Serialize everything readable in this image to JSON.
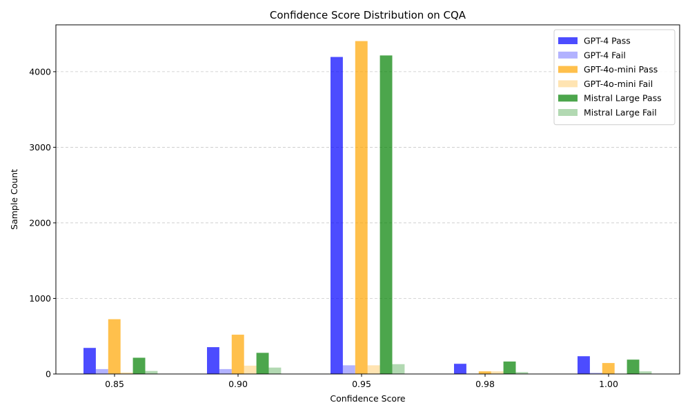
{
  "chart_data": {
    "type": "bar",
    "title": "Confidence Score Distribution on CQA",
    "xlabel": "Confidence Score",
    "ylabel": "Sample Count",
    "categories": [
      "0.85",
      "0.90",
      "0.95",
      "0.98",
      "1.00"
    ],
    "ylim": [
      0,
      4620
    ],
    "yticks": [
      0,
      1000,
      2000,
      3000,
      4000
    ],
    "grid": "y-dashed",
    "legend_position": "top-right",
    "series": [
      {
        "name": "GPT-4 Pass",
        "color": "#0000ff",
        "opacity": 0.7,
        "values": [
          345,
          355,
          4195,
          135,
          235
        ]
      },
      {
        "name": "GPT-4 Fail",
        "color": "#0000ff",
        "opacity": 0.3,
        "values": [
          65,
          65,
          115,
          0,
          15
        ]
      },
      {
        "name": "GPT-4o-mini Pass",
        "color": "#ffa500",
        "opacity": 0.7,
        "values": [
          725,
          520,
          4405,
          35,
          145
        ]
      },
      {
        "name": "GPT-4o-mini Fail",
        "color": "#ffa500",
        "opacity": 0.3,
        "values": [
          20,
          110,
          115,
          35,
          0
        ]
      },
      {
        "name": "Mistral Large Pass",
        "color": "#008000",
        "opacity": 0.7,
        "values": [
          215,
          280,
          4215,
          165,
          190
        ]
      },
      {
        "name": "Mistral Large Fail",
        "color": "#008000",
        "opacity": 0.3,
        "values": [
          40,
          85,
          130,
          25,
          35
        ]
      }
    ]
  }
}
